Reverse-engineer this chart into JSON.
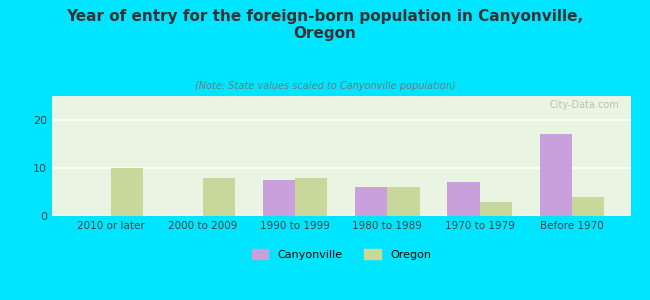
{
  "title": "Year of entry for the foreign-born population in Canyonville,\nOregon",
  "subtitle": "(Note: State values scaled to Canyonville population)",
  "categories": [
    "2010 or later",
    "2000 to 2009",
    "1990 to 1999",
    "1980 to 1989",
    "1970 to 1979",
    "Before 1970"
  ],
  "canyonville_values": [
    0,
    0,
    7.5,
    6.0,
    7.0,
    17.0
  ],
  "oregon_values": [
    10.0,
    8.0,
    8.0,
    6.0,
    3.0,
    4.0
  ],
  "canyonville_color": "#c9a0dc",
  "oregon_color": "#c8d89a",
  "background_color": "#00e5ff",
  "title_color": "#333333",
  "subtitle_color": "#777777",
  "ylim": [
    0,
    25
  ],
  "yticks": [
    0,
    10,
    20
  ],
  "bar_width": 0.35,
  "watermark": "City-Data.com",
  "legend_labels": [
    "Canyonville",
    "Oregon"
  ]
}
